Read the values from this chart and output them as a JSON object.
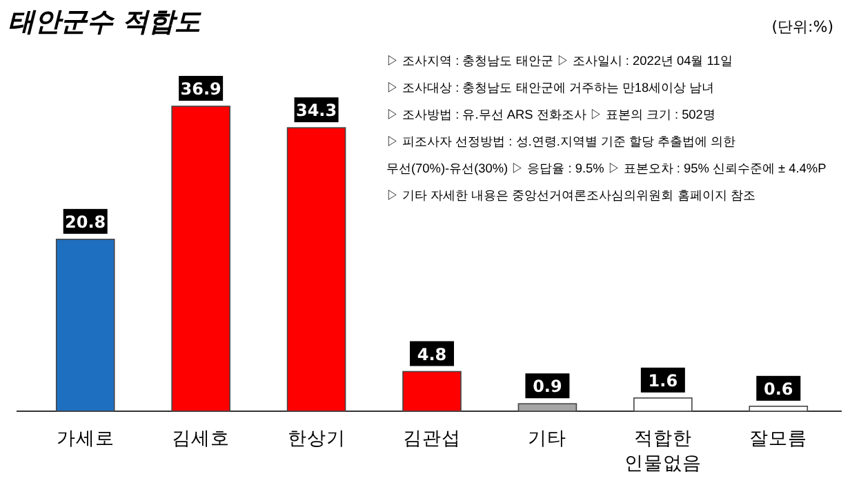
{
  "chart_data": {
    "type": "bar",
    "title": "태안군수 적합도",
    "categories": [
      "가세로",
      "김세호",
      "한상기",
      "김관섭",
      "기타",
      "적합한\n인물없음",
      "잘모름"
    ],
    "values": [
      20.8,
      36.9,
      34.3,
      4.8,
      0.9,
      1.6,
      0.6
    ],
    "colors": [
      "#1f6fc0",
      "#ff0000",
      "#ff0000",
      "#ff0000",
      "#a6a6a6",
      "#ffffff",
      "#ffffff"
    ],
    "data_labels": true,
    "annotations": [
      "(단위:%)",
      "▷ 조사지역 : 충청남도 태안군 ▷ 조사일시 : 2022년 04월 11일",
      "▷ 조사대상 : 충청남도 태안군에 거주하는 만18세이상 남녀",
      "▷ 조사방법 : 유.무선 ARS 전화조사 ▷ 표본의 크기 : 502명",
      "▷ 피조사자 선정방법 : 성.연령.지역별 기준 할당 추출법에 의한",
      "무선(70%)-유선(30%) ▷ 응답율 : 9.5% ▷ 표본오차 : 95% 신뢰수준에 ± 4.4%P",
      "▷ 기타 자세한 내용은 중앙선거여론조사심의위원회 홈페이지 참조"
    ]
  }
}
